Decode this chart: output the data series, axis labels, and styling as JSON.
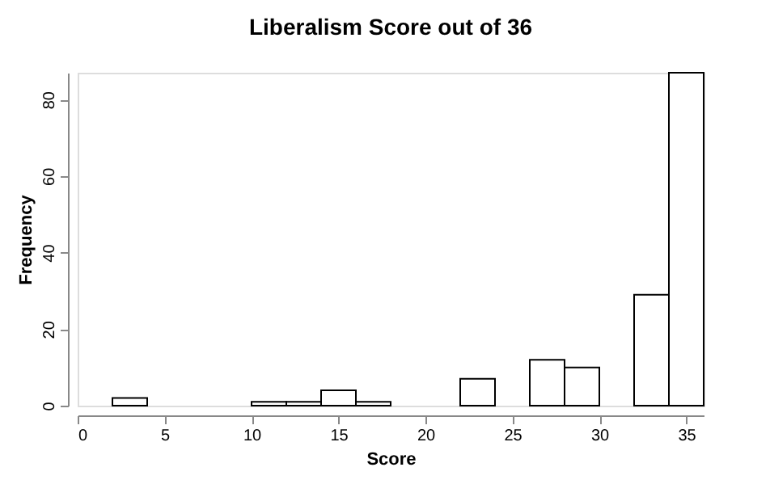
{
  "chart_data": {
    "type": "histogram",
    "title": "Liberalism Score out of 36",
    "xlabel": "Score",
    "ylabel": "Frequency",
    "bins": [
      2,
      4,
      6,
      8,
      10,
      12,
      14,
      16,
      18,
      20,
      22,
      24,
      26,
      28,
      30,
      32,
      34,
      36
    ],
    "values": [
      2,
      0,
      0,
      0,
      1,
      1,
      4,
      1,
      0,
      0,
      7,
      0,
      12,
      10,
      0,
      29,
      87
    ],
    "color": "#ffffff",
    "xlim": [
      0,
      36
    ],
    "xticks": [
      0,
      5,
      10,
      15,
      20,
      25,
      30,
      35
    ],
    "ylim": [
      0,
      87
    ],
    "yticks": [
      0,
      20,
      40,
      60,
      80
    ],
    "grid": false
  }
}
